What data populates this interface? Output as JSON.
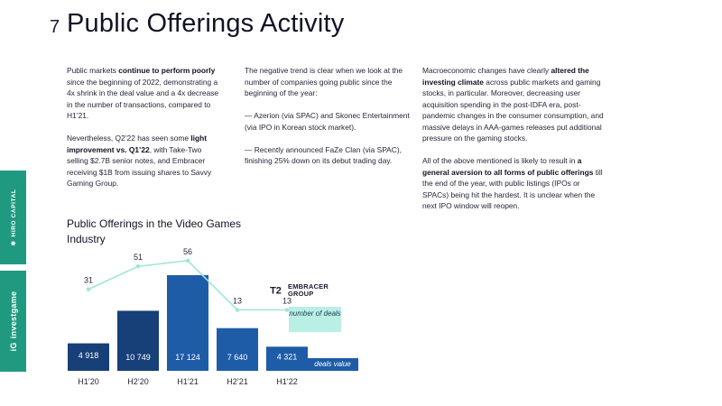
{
  "header": {
    "page_number": "7",
    "title": "Public Offerings Activity"
  },
  "columns": {
    "col1": {
      "p1": [
        {
          "text": "Public markets ",
          "bold": false
        },
        {
          "text": "continue to perform poorly",
          "bold": true
        },
        {
          "text": " since the beginning of 2022, demonstrating a 4x shrink in the deal value and a 4x decrease in the number of transactions, compared to H1’21.",
          "bold": false
        }
      ],
      "p2": [
        {
          "text": "Nevertheless, Q2’22 has seen some ",
          "bold": false
        },
        {
          "text": "light improvement vs. Q1’22",
          "bold": true
        },
        {
          "text": ", with Take-Two selling $2.7B senior notes, and Embracer receiving $1B from issuing shares to Savvy Gaming Group.",
          "bold": false
        }
      ]
    },
    "col2": {
      "p1": "The negative trend is clear when we look at the number of companies going public since the beginning of the year:",
      "p2": "— Azerion (via SPAC) and Skonec Entertainment (via IPO in Korean stock market).",
      "p3": "— Recently announced FaZe Clan (via SPAC), finishing 25% down on its debut trading day."
    },
    "col3": {
      "p1": [
        {
          "text": "Macroeconomic changes have clearly ",
          "bold": false
        },
        {
          "text": "altered the investing climate",
          "bold": true
        },
        {
          "text": " across public markets and gaming stocks, in particular. Moreover, decreasing user acquisition spending in the post-IDFA era, post-pandemic changes in the consumer consumption, and massive delays in AAA-games releases put additional pressure on the gaming stocks.",
          "bold": false
        }
      ],
      "p2": [
        {
          "text": "All of the above mentioned is likely to result in ",
          "bold": false
        },
        {
          "text": "a general aversion to all forms of public offerings",
          "bold": true
        },
        {
          "text": " till the end of the year, with public listings (IPOs or SPACs) being hit the hardest. It is unclear when the next IPO window will reopen.",
          "bold": false
        }
      ]
    }
  },
  "sidebar": {
    "top_label": "HIRO CAPITAL",
    "top_mark": "✱",
    "bottom_label": "investgame",
    "bottom_mark": "iG"
  },
  "logos": {
    "t2_text": "T2",
    "embracer_line1": "EMBRACER",
    "embracer_line2": "GROUP"
  },
  "colors": {
    "accent_teal": "#1f9a80",
    "bar_dark": "#173f78",
    "bar_mid": "#1e5ca8",
    "line_deals": "#9fe6d8",
    "legend_deals_bg": "#b9efe4"
  },
  "chart_data": {
    "type": "bar",
    "title": "Public Offerings in the Video Games Industry",
    "categories": [
      "H1’20",
      "H2’20",
      "H1’21",
      "H2’21",
      "H1’22"
    ],
    "series": [
      {
        "name": "deals value",
        "kind": "bar",
        "values": [
          4918,
          10749,
          17124,
          7640,
          4321
        ],
        "labels": [
          "4 918",
          "10 749",
          "17 124",
          "7 640",
          "4 321"
        ]
      },
      {
        "name": "number of deals",
        "kind": "line",
        "values": [
          31,
          51,
          56,
          13,
          13
        ],
        "labels": [
          "31",
          "51",
          "56",
          "13",
          "13"
        ]
      }
    ],
    "bar_colors": [
      "#173f78",
      "#173f78",
      "#1e5ca8",
      "#1e5ca8",
      "#1e5ca8"
    ],
    "ylim_value": [
      0,
      17124
    ],
    "ylim_deals": [
      0,
      56
    ],
    "legend": {
      "deals": "number of deals",
      "value": "deals value"
    },
    "xlabel": "",
    "ylabel": ""
  }
}
